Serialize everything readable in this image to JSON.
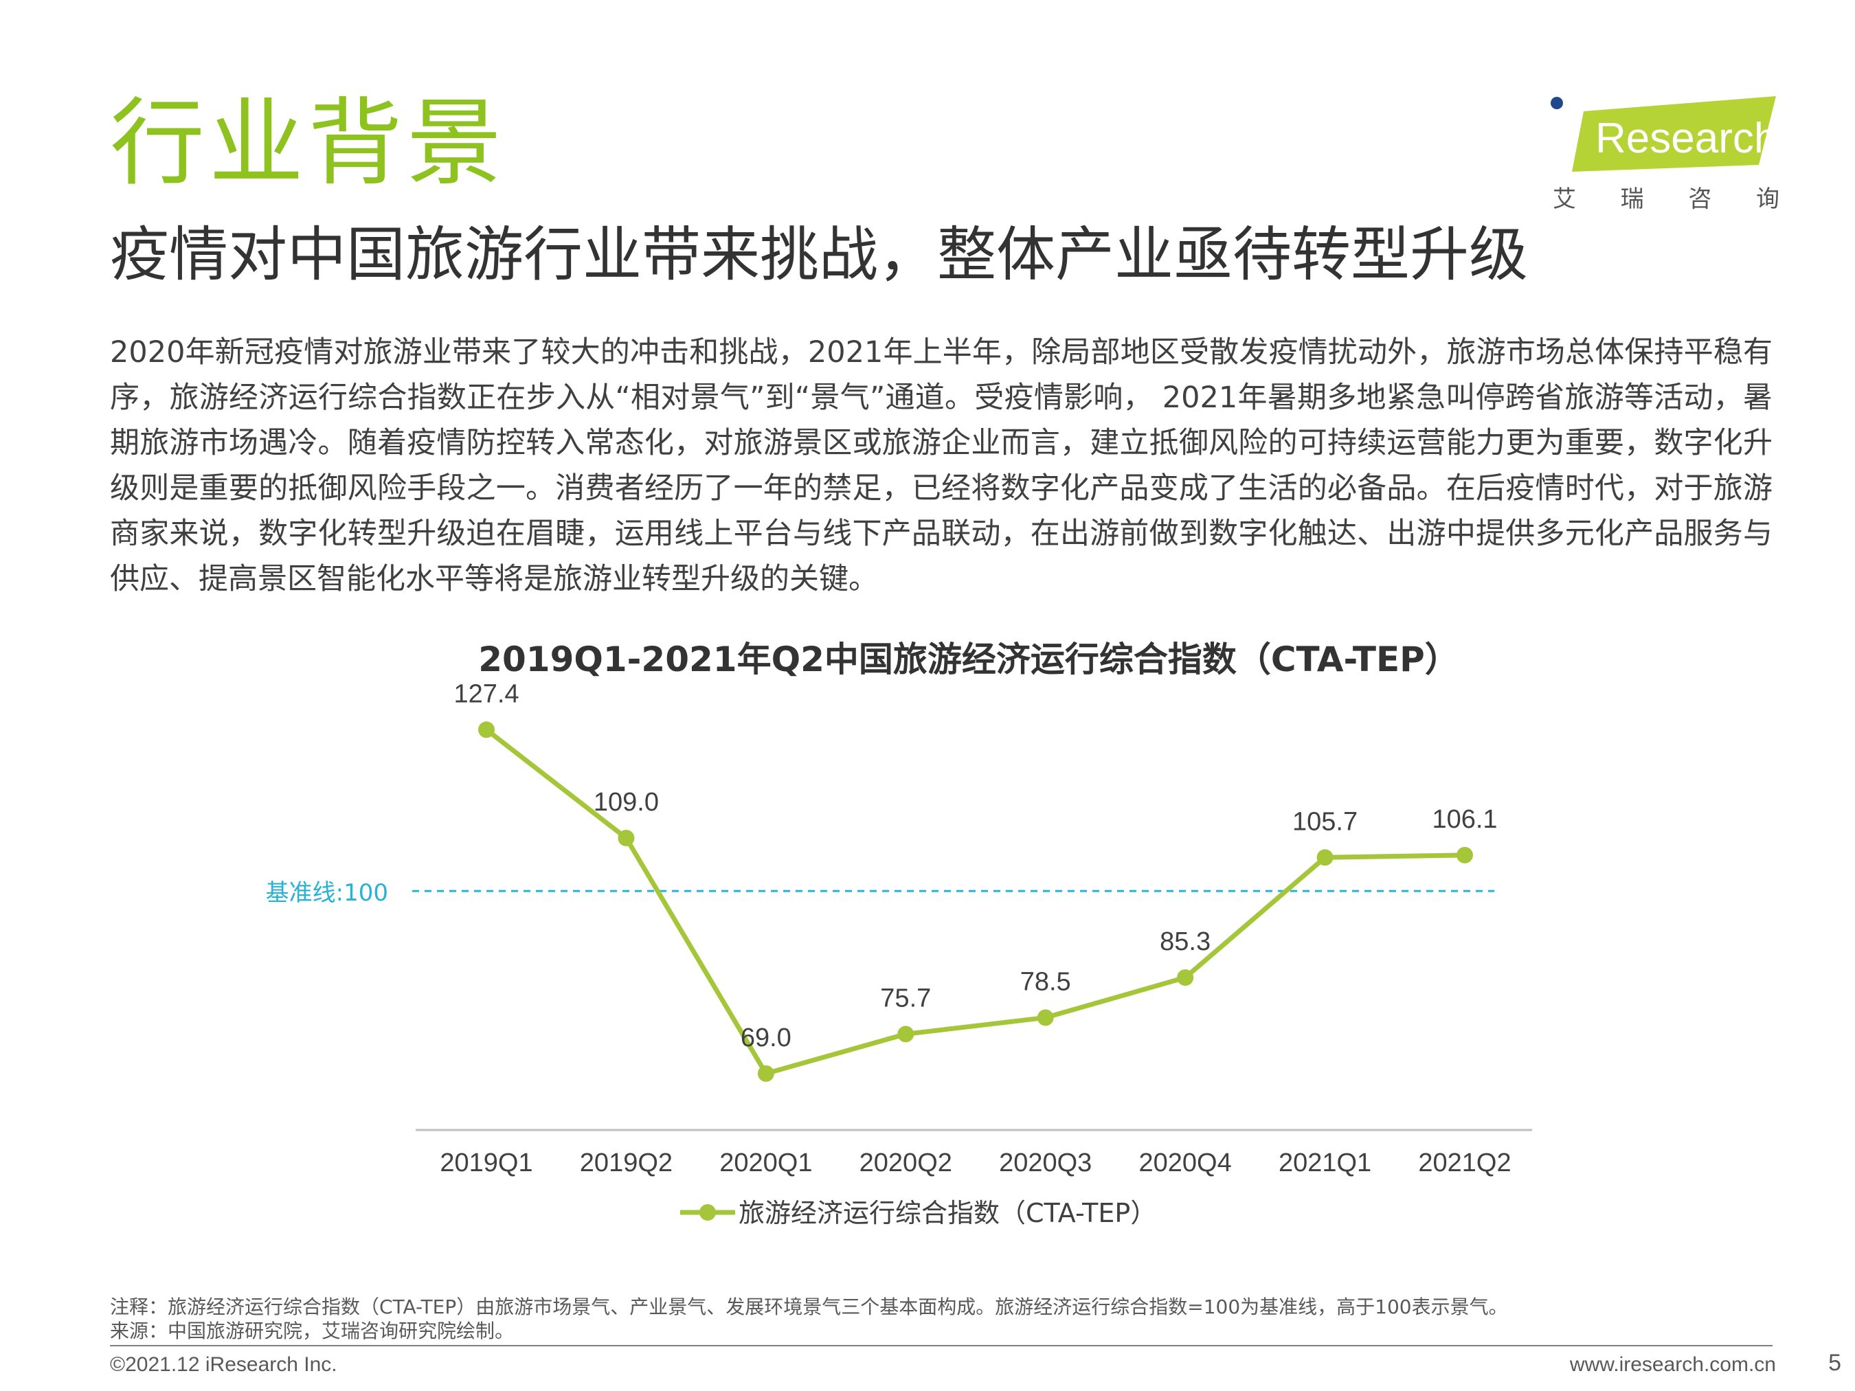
{
  "header": {
    "section_title": "行业背景",
    "logo_text": "Research",
    "logo_sub": [
      "艾",
      "瑞",
      "咨",
      "询"
    ],
    "headline": "疫情对中国旅游行业带来挑战，整体产业亟待转型升级"
  },
  "body": "2020年新冠疫情对旅游业带来了较大的冲击和挑战，2021年上半年，除局部地区受散发疫情扰动外，旅游市场总体保持平稳有序，旅游经济运行综合指数正在步入从“相对景气”到“景气”通道。受疫情影响， 2021年暑期多地紧急叫停跨省旅游等活动，暑期旅游市场遇冷。随着疫情防控转入常态化，对旅游景区或旅游企业而言，建立抵御风险的可持续运营能力更为重要，数字化升级则是重要的抵御风险手段之一。消费者经历了一年的禁足，已经将数字化产品变成了生活的必备品。在后疫情时代，对于旅游商家来说，数字化转型升级迫在眉睫，运用线上平台与线下产品联动，在出游前做到数字化触达、出游中提供多元化产品服务与供应、提高景区智能化水平等将是旅游业转型升级的关键。",
  "chart_data": {
    "type": "line",
    "title": "2019Q1-2021年Q2中国旅游经济运行综合指数（CTA-TEP）",
    "categories": [
      "2019Q1",
      "2019Q2",
      "2020Q1",
      "2020Q2",
      "2020Q3",
      "2020Q4",
      "2021Q1",
      "2021Q2"
    ],
    "series": [
      {
        "name": "旅游经济运行综合指数（CTA-TEP）",
        "values": [
          127.4,
          109.0,
          69.0,
          75.7,
          78.5,
          85.3,
          105.7,
          106.1
        ],
        "labels": [
          "127.4",
          "109.0",
          "69.0",
          "75.7",
          "78.5",
          "85.3",
          "105.7",
          "106.1"
        ],
        "color": "#a6c63a"
      }
    ],
    "reference_line": {
      "value": 100,
      "label": "基准线:100",
      "color": "#27b2d6"
    },
    "ylim": [
      60,
      130
    ],
    "legend": "bottom",
    "grid": false
  },
  "footer": {
    "note": "注释：旅游经济运行综合指数（CTA-TEP）由旅游市场景气、产业景气、发展环境景气三个基本面构成。旅游经济运行综合指数=100为基准线，高于100表示景气。",
    "source": "来源：中国旅游研究院，艾瑞咨询研究院绘制。",
    "copyright": "©2021.12 iResearch Inc.",
    "site": "www.iresearch.com.cn",
    "page": "5"
  },
  "colors": {
    "accent": "#8dc21f",
    "series": "#a6c63a",
    "reference": "#27b2d6"
  }
}
